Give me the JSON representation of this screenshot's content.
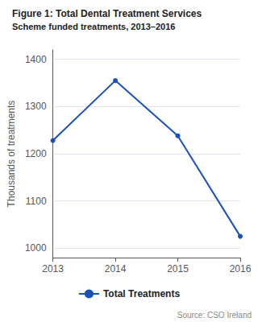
{
  "chart_data": {
    "type": "line",
    "title": "Figure 1: Total Dental Treatment Services",
    "subtitle": "Scheme funded treatments, 2013–2016",
    "x": [
      2013,
      2014,
      2015,
      2016
    ],
    "series": [
      {
        "name": "Total Treatments",
        "color": "#1a4fbd",
        "marker": "circle",
        "values": [
          1228,
          1355,
          1238,
          1025
        ]
      }
    ],
    "ylabel": "Thousands of treatments",
    "xlim": [
      2013,
      2016
    ],
    "xticks": [
      2013,
      2014,
      2015,
      2016
    ],
    "ylim": [
      980,
      1420
    ],
    "yticks": [
      1000,
      1100,
      1200,
      1300,
      1400
    ],
    "grid": true,
    "legend": "bottom",
    "annotations": [
      "Source: CSO Ireland"
    ]
  }
}
